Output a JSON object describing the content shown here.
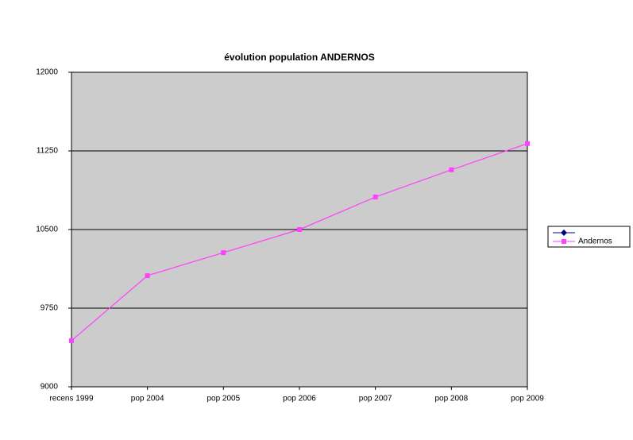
{
  "chart_data": {
    "type": "line",
    "title": "évolution population ANDERNOS",
    "categories": [
      "recens 1999",
      "pop 2004",
      "pop 2005",
      "pop 2006",
      "pop 2007",
      "pop 2008",
      "pop 2009"
    ],
    "series": [
      {
        "name": null,
        "color": "#000080",
        "marker": "diamond",
        "values": [
          null,
          null,
          null,
          null,
          null,
          null,
          null
        ]
      },
      {
        "name": "Andernos",
        "color": "#ff40ff",
        "marker": "square",
        "values": [
          9440,
          10060,
          10280,
          10500,
          10810,
          11070,
          11320
        ]
      }
    ],
    "ylim": [
      9000,
      12000
    ],
    "yticks": [
      9000,
      9750,
      10500,
      11250,
      12000
    ],
    "grid": true,
    "legend": "right"
  }
}
